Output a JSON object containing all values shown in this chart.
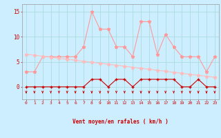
{
  "x": [
    0,
    1,
    2,
    3,
    4,
    5,
    6,
    7,
    8,
    9,
    10,
    11,
    12,
    13,
    14,
    15,
    16,
    17,
    18,
    19,
    20,
    21,
    22,
    23
  ],
  "rafales": [
    3.0,
    3.0,
    6.0,
    6.0,
    6.0,
    6.0,
    6.0,
    8.0,
    15.0,
    11.5,
    11.5,
    8.0,
    8.0,
    6.0,
    13.0,
    13.0,
    6.5,
    10.5,
    8.0,
    6.0,
    6.0,
    6.0,
    3.0,
    6.0
  ],
  "moyen": [
    6.5,
    6.3,
    6.1,
    5.9,
    5.7,
    5.5,
    5.3,
    5.1,
    4.9,
    4.7,
    4.5,
    4.3,
    4.1,
    3.9,
    3.7,
    3.5,
    3.3,
    3.1,
    2.9,
    2.7,
    2.5,
    2.3,
    2.1,
    1.9
  ],
  "vent": [
    0,
    0,
    0,
    0,
    0,
    0,
    0,
    0,
    1.5,
    1.5,
    0,
    1.5,
    1.5,
    0,
    1.5,
    1.5,
    1.5,
    1.5,
    1.5,
    0,
    0,
    1.5,
    0,
    0
  ],
  "bg_color": "#cceeff",
  "grid_color": "#aadddd",
  "rafales_color": "#ff9999",
  "moyen_color": "#ffbbbb",
  "vent_color": "#cc0000",
  "xlabel": "Vent moyen/en rafales ( km/h )",
  "yticks": [
    0,
    5,
    10,
    15
  ],
  "ylim": [
    -2.5,
    16.5
  ],
  "xlim": [
    -0.5,
    23.5
  ],
  "arrow_angles": [
    225,
    225,
    225,
    225,
    225,
    225,
    225,
    180,
    225,
    270,
    270,
    270,
    270,
    270,
    270,
    270,
    270,
    270,
    270,
    270,
    270,
    270,
    270,
    270
  ]
}
